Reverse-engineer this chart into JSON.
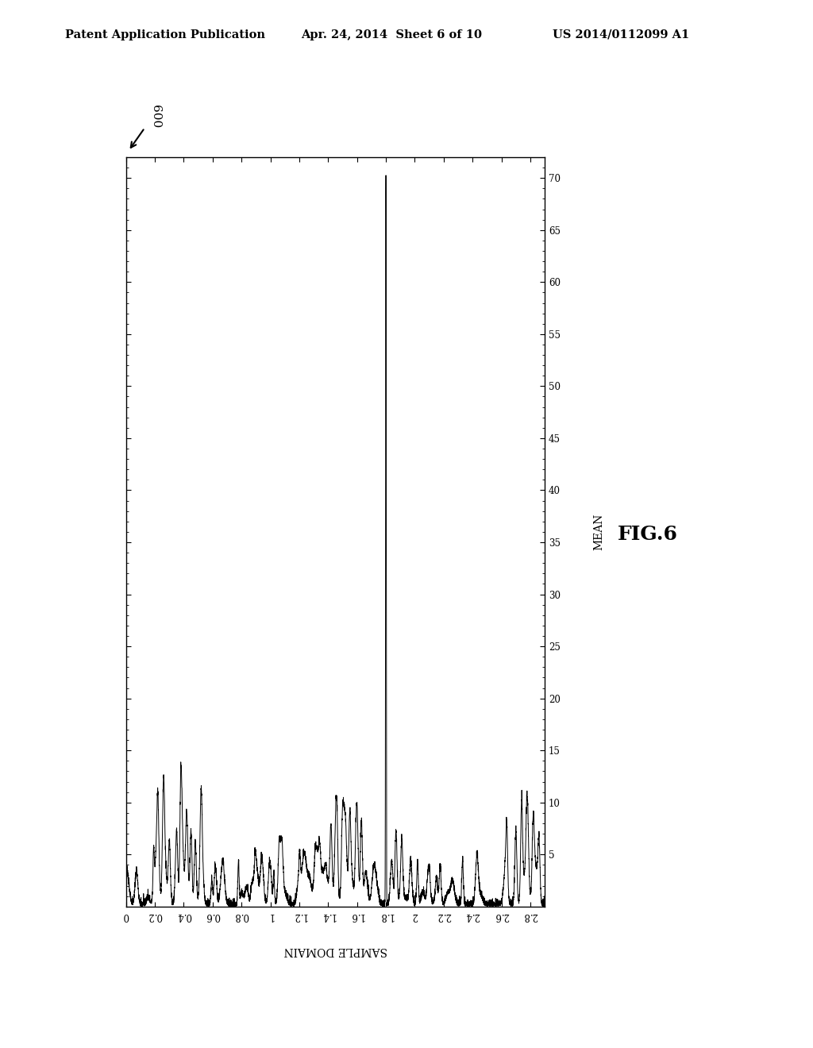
{
  "header_left": "Patent Application Publication",
  "header_mid": "Apr. 24, 2014  Sheet 6 of 10",
  "header_right": "US 2014/0112099 A1",
  "figure_label": "FIG.6",
  "ref_number": "600",
  "xlabel": "SAMPLE DOMAIN",
  "ylabel": "MEAN",
  "xlim": [
    0,
    2.9
  ],
  "ylim": [
    0,
    72
  ],
  "yticks": [
    5,
    10,
    15,
    20,
    25,
    30,
    35,
    40,
    45,
    50,
    55,
    60,
    65,
    70
  ],
  "xtick_vals": [
    0,
    0.2,
    0.4,
    0.6,
    0.8,
    1.0,
    1.2,
    1.4,
    1.6,
    1.8,
    2.0,
    2.2,
    2.4,
    2.6,
    2.8
  ],
  "xtick_labels": [
    "0",
    "0.2",
    "0.4",
    "0.6",
    "0.8",
    "1",
    "1.2",
    "1.4",
    "1.6",
    "1.8",
    "2",
    "2.2",
    "2.4",
    "2.6",
    "2.8"
  ],
  "spike_x": 1.8,
  "spike_y": 70,
  "background_color": "#ffffff",
  "line_color": "#000000",
  "text_color": "#000000"
}
